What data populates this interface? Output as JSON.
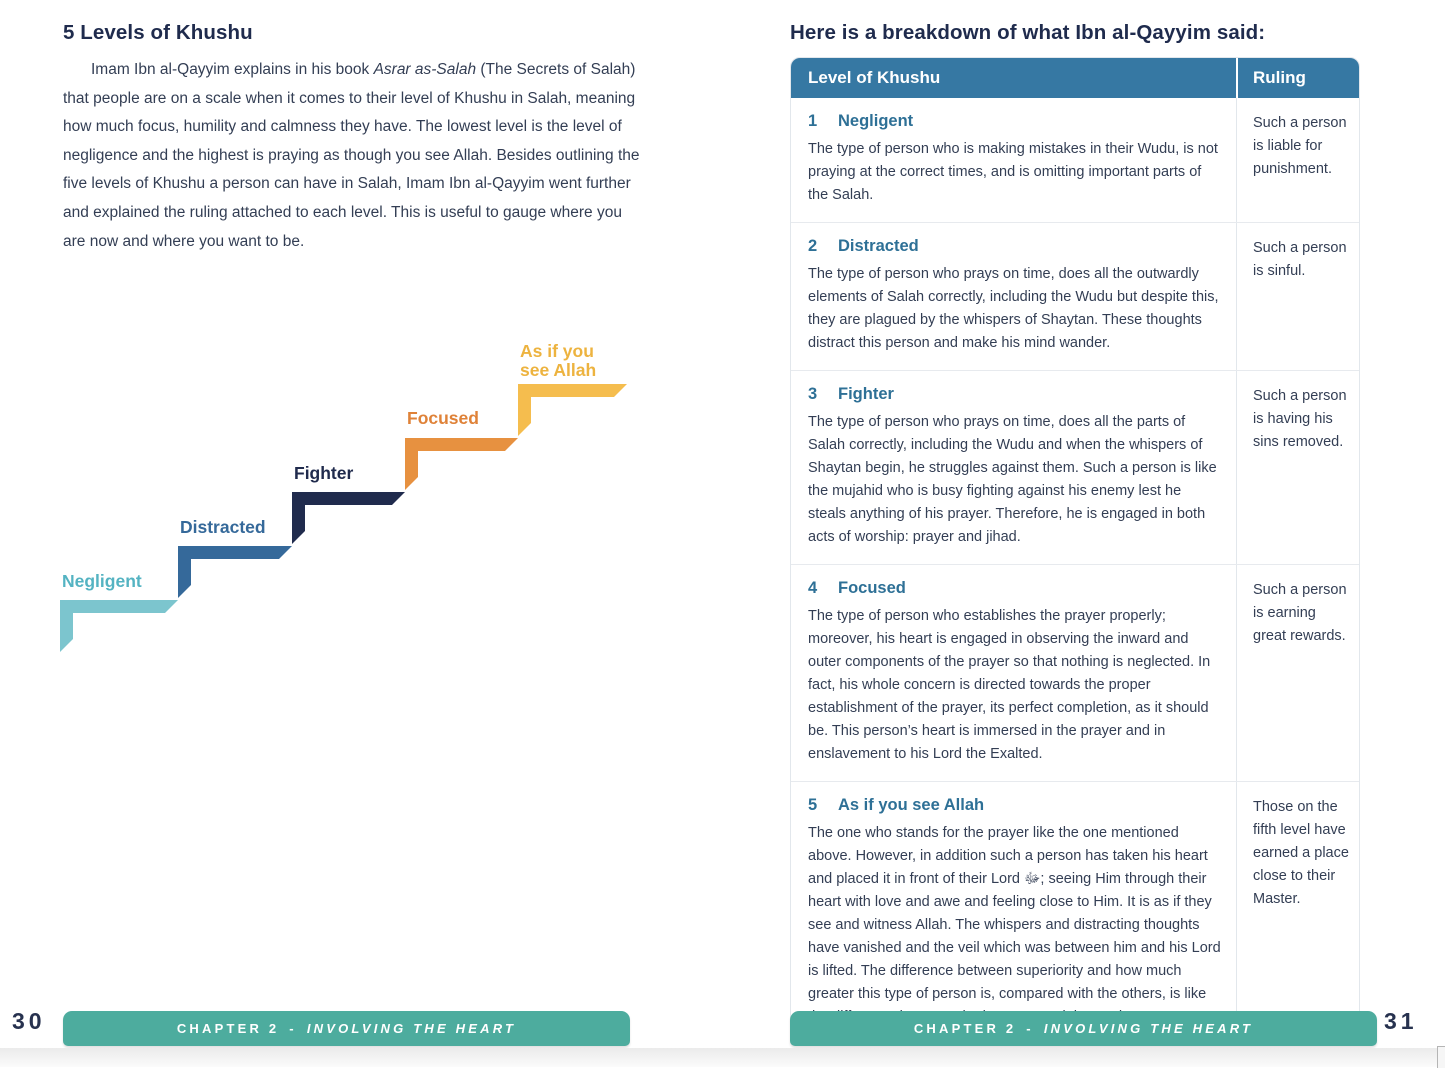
{
  "left_page": {
    "title": "5 Levels of Khushu",
    "paragraph": {
      "part1": "Imam Ibn al-Qayyim explains in his book ",
      "book_title": "Asrar as-Salah",
      "part2": " (The Secrets of Salah) that people are on a scale when it comes to their level of Khushu in Salah, meaning how much focus, humility and calmness they have. The lowest level is the level of negligence and the highest is praying as though you see Allah. Besides outlining the five levels of Khushu a person can have in Salah, Imam Ibn al-Qayyim went further and explained the ruling attached to each level. This is useful to gauge where you are now and where you want to be."
    },
    "page_number": "30"
  },
  "diagram": {
    "steps": [
      {
        "label_lines": [
          "Negligent"
        ],
        "color": "#7cc5ce",
        "label_color": "#54b3c2"
      },
      {
        "label_lines": [
          "Distracted"
        ],
        "color": "#35699a",
        "label_color": "#35699a"
      },
      {
        "label_lines": [
          "Fighter"
        ],
        "color": "#202b4d",
        "label_color": "#202b4d"
      },
      {
        "label_lines": [
          "Focused"
        ],
        "color": "#e79140",
        "label_color": "#df8238"
      },
      {
        "label_lines": [
          "As if you",
          "see Allah"
        ],
        "color": "#f5bd4e",
        "label_color": "#edb33f"
      }
    ]
  },
  "right_page": {
    "title": "Here is a breakdown of what Ibn al-Qayyim said:",
    "page_number": "31"
  },
  "table": {
    "headers": [
      "Level of Khushu",
      "Ruling"
    ],
    "rows": [
      {
        "number": "1",
        "name": "Negligent",
        "description": "The type of person who is making mistakes in their Wudu, is not praying at the correct times, and is omitting important parts of the Salah.",
        "ruling": "Such a person is liable for punishment."
      },
      {
        "number": "2",
        "name": "Distracted",
        "description": "The type of person who prays on time, does all the outwardly elements of Salah correctly, including the Wudu but despite this, they are plagued by the whispers of Shaytan. These thoughts distract this person and make his mind wander.",
        "ruling": "Such a person is sinful."
      },
      {
        "number": "3",
        "name": "Fighter",
        "description": "The type of person who prays on time, does all the parts of Salah correctly, including the Wudu and when the whispers of Shaytan begin, he struggles against them. Such a person is like the mujahid who is busy fighting against his enemy lest he steals anything of his prayer. Therefore, he is engaged in both acts of worship: prayer and jihad.",
        "ruling": "Such a person is having his sins removed."
      },
      {
        "number": "4",
        "name": "Focused",
        "description": "The type of person who establishes the prayer properly; moreover, his heart is engaged in observing the inward and outer components of the prayer so that nothing is neglected. In fact, his whole concern is directed towards the proper establishment of the prayer, its perfect completion, as it should be. This person’s heart is immersed in the prayer and in enslavement to his Lord the Exalted.",
        "ruling": "Such a person is earning great rewards."
      },
      {
        "number": "5",
        "name": "As if you see Allah",
        "description": "The one who stands for the prayer like the one mentioned above. However, in addition such a person has taken his heart and placed it in front of their Lord ﷻ; seeing Him through their heart with love and awe and feeling close to Him. It is as if they see and witness Allah. The whispers and distracting thoughts have vanished and the veil which was between him and his Lord is lifted. The difference between superiority and how much greater this type of person is, compared with the others, is like the difference between the heavens and the earth.",
        "ruling": "Those on the fifth level have earned a place close to their Master."
      }
    ]
  },
  "footer": {
    "chapter_label": "CHAPTER 2",
    "separator": "-",
    "chapter_title": "INVOLVING THE HEART"
  },
  "colors": {
    "table_header_bg": "#3678a3",
    "level_title_blue": "#2e7096",
    "footer_teal": "#4dac9e",
    "heading_navy": "#1f2b4d",
    "body_text": "#333e54"
  }
}
